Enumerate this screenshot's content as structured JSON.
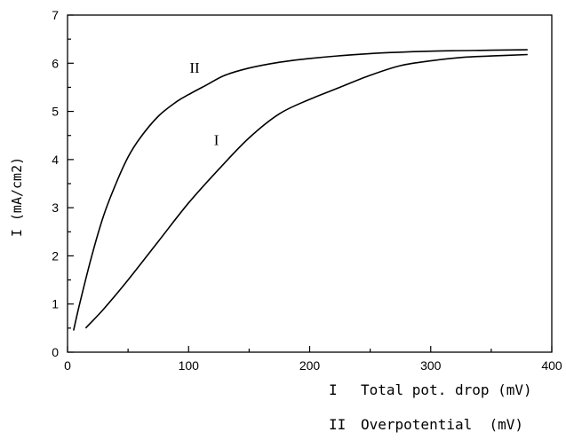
{
  "chart_data": {
    "type": "line",
    "title": "",
    "xlabel": "",
    "ylabel": "I  (mA/cm2)",
    "xlim": [
      0,
      400
    ],
    "ylim": [
      0,
      7
    ],
    "x_ticks": [
      0,
      100,
      200,
      300,
      400
    ],
    "y_ticks": [
      0,
      1,
      2,
      3,
      4,
      5,
      6,
      7
    ],
    "grid": false,
    "series": [
      {
        "name": "I",
        "x": [
          15,
          30,
          50,
          75,
          100,
          125,
          150,
          175,
          200,
          225,
          250,
          275,
          300,
          325,
          350,
          380
        ],
        "y": [
          0.5,
          0.9,
          1.5,
          2.3,
          3.1,
          3.8,
          4.45,
          4.95,
          5.25,
          5.5,
          5.75,
          5.95,
          6.05,
          6.12,
          6.15,
          6.18
        ]
      },
      {
        "name": "II",
        "x": [
          5,
          10,
          20,
          30,
          40,
          50,
          60,
          75,
          90,
          100,
          115,
          130,
          150,
          175,
          200,
          250,
          300,
          350,
          380
        ],
        "y": [
          0.45,
          1.0,
          2.0,
          2.85,
          3.5,
          4.05,
          4.45,
          4.9,
          5.2,
          5.35,
          5.55,
          5.75,
          5.9,
          6.02,
          6.1,
          6.2,
          6.25,
          6.27,
          6.28
        ]
      }
    ],
    "curve_labels": [
      {
        "series": "II",
        "text": "II",
        "x": 105,
        "y": 5.8
      },
      {
        "series": "I",
        "text": "I",
        "x": 123,
        "y": 4.3
      }
    ],
    "legend": {
      "placement": "bottom-right",
      "entries": [
        {
          "key": "I",
          "label": "Total pot. drop (mV)"
        },
        {
          "key": "II",
          "label": "Overpotential  (mV)"
        }
      ]
    }
  }
}
